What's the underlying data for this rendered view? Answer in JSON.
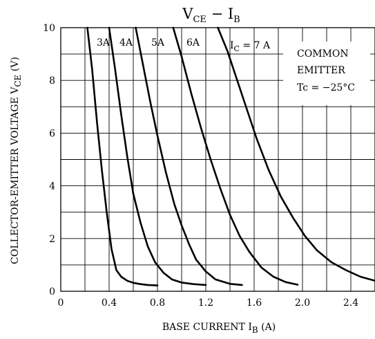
{
  "chart_data": {
    "type": "line",
    "title": {
      "main": "V",
      "main_sub": "CE",
      "sep": " − ",
      "var": "I",
      "var_sub": "B"
    },
    "xlabel": {
      "pre": "BASE CURRENT  I",
      "sub": "B",
      "post": "  (A)"
    },
    "ylabel": {
      "pre": "COLLECTOR-EMITTER VOLTAGE   V",
      "sub": "CE",
      "post": "   (V)"
    },
    "xlim": [
      0,
      2.6
    ],
    "ylim": [
      0,
      10
    ],
    "xticks": [
      "0",
      "0.4",
      "0.8",
      "1.2",
      "1.6",
      "2.0",
      "2.4"
    ],
    "yticks": [
      "0",
      "2",
      "4",
      "6",
      "8",
      "10"
    ],
    "x_tick_values": [
      0,
      0.4,
      0.8,
      1.2,
      1.6,
      2.0,
      2.4
    ],
    "y_tick_values": [
      0,
      2,
      4,
      6,
      8,
      10
    ],
    "grid": true,
    "annotation": {
      "line1": "COMMON",
      "line2": "EMITTER",
      "line3": "Tc = −25°C"
    },
    "series": [
      {
        "name": "3A",
        "label": {
          "text": "3A"
        },
        "x": [
          0.22,
          0.26,
          0.3,
          0.34,
          0.38,
          0.42,
          0.46,
          0.5,
          0.55,
          0.6,
          0.66,
          0.72,
          0.8
        ],
        "y": [
          10,
          8.4,
          6.4,
          4.6,
          3.0,
          1.6,
          0.8,
          0.55,
          0.4,
          0.32,
          0.27,
          0.24,
          0.22
        ]
      },
      {
        "name": "4A",
        "label": {
          "text": "4A"
        },
        "x": [
          0.4,
          0.45,
          0.5,
          0.55,
          0.6,
          0.66,
          0.72,
          0.78,
          0.85,
          0.92,
          1.0,
          1.1,
          1.2
        ],
        "y": [
          10,
          8.4,
          6.7,
          5.1,
          3.7,
          2.6,
          1.7,
          1.1,
          0.7,
          0.45,
          0.33,
          0.27,
          0.24
        ]
      },
      {
        "name": "5A",
        "label": {
          "text": "5A"
        },
        "x": [
          0.62,
          0.68,
          0.74,
          0.8,
          0.87,
          0.94,
          1.0,
          1.06,
          1.12,
          1.2,
          1.28,
          1.4,
          1.5
        ],
        "y": [
          10,
          8.6,
          7.2,
          5.9,
          4.5,
          3.3,
          2.5,
          1.8,
          1.2,
          0.75,
          0.45,
          0.28,
          0.24
        ]
      },
      {
        "name": "6A",
        "label": {
          "text": "6A"
        },
        "x": [
          0.93,
          1.0,
          1.08,
          1.16,
          1.24,
          1.32,
          1.4,
          1.48,
          1.56,
          1.66,
          1.76,
          1.86,
          1.96
        ],
        "y": [
          10,
          8.9,
          7.5,
          6.2,
          5.0,
          3.9,
          2.9,
          2.1,
          1.5,
          0.9,
          0.55,
          0.35,
          0.25
        ]
      },
      {
        "name": "I_C = 7 A",
        "label": {
          "pre": "I",
          "sub": "C",
          "post": " = 7 A"
        },
        "x": [
          1.3,
          1.38,
          1.46,
          1.54,
          1.62,
          1.72,
          1.82,
          1.92,
          2.02,
          2.12,
          2.24,
          2.36,
          2.48,
          2.6
        ],
        "y": [
          10,
          9.1,
          8.0,
          6.9,
          5.8,
          4.6,
          3.6,
          2.8,
          2.1,
          1.55,
          1.1,
          0.8,
          0.55,
          0.4
        ]
      }
    ]
  }
}
